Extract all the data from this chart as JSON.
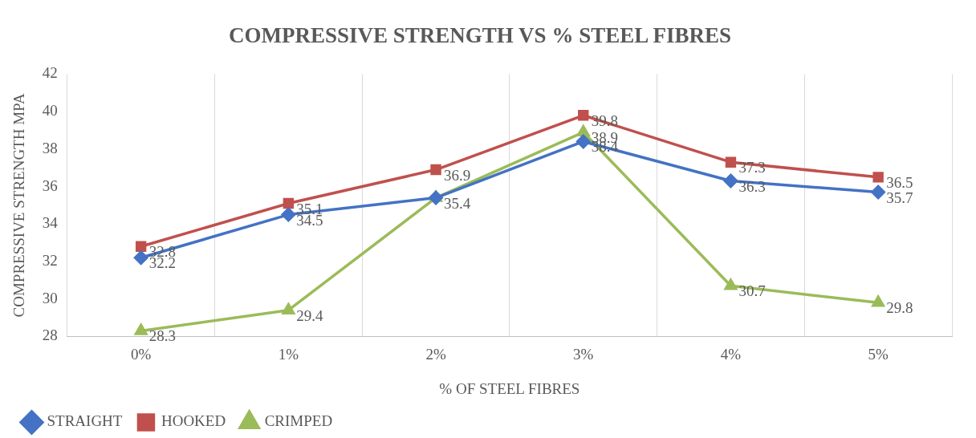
{
  "chart_data": {
    "type": "line",
    "title": "COMPRESSIVE STRENGTH VS % STEEL FIBRES",
    "xlabel": "% OF STEEL FIBRES",
    "ylabel": "COMPRESSIVE STRENGTH MPA",
    "categories": [
      "0%",
      "1%",
      "2%",
      "3%",
      "4%",
      "5%"
    ],
    "series": [
      {
        "name": "STRAIGHT",
        "color": "#4472c4",
        "marker": "diamond",
        "values": [
          32.2,
          34.5,
          35.4,
          38.4,
          36.3,
          35.7
        ],
        "value_labels": [
          "32.2",
          "34.5",
          null,
          "38.4",
          "36.3",
          "35.7"
        ]
      },
      {
        "name": "HOOKED",
        "color": "#c0504d",
        "marker": "square",
        "values": [
          32.8,
          35.1,
          36.9,
          39.8,
          37.3,
          36.5
        ],
        "value_labels": [
          "32.8",
          "35.1",
          "36.9",
          "39.8",
          "37.3",
          "36.5"
        ]
      },
      {
        "name": "CRIMPED",
        "color": "#9bbb59",
        "marker": "triangle",
        "values": [
          28.3,
          29.4,
          35.4,
          38.9,
          30.7,
          29.8
        ],
        "value_labels": [
          "28.3",
          "29.4",
          "35.4",
          "38.9",
          "30.7",
          "29.8"
        ]
      }
    ],
    "ylim": [
      28,
      42
    ],
    "yticks": [
      28,
      30,
      32,
      34,
      36,
      38,
      40,
      42
    ],
    "grid": "x",
    "legend": "bottom left",
    "line_style": "solid"
  }
}
